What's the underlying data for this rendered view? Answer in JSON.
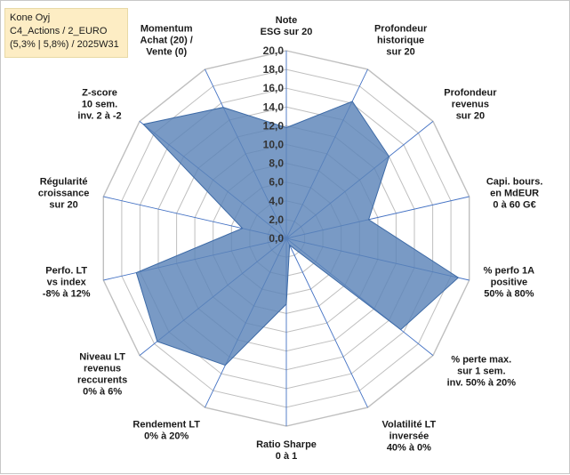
{
  "info": {
    "line1": "Kone Oyj",
    "line2": "C4_Actions / 2_EURO",
    "line3": "(5,3% | 5,8%) / 2025W31"
  },
  "colors": {
    "fill": "#5b84b8",
    "stroke": "#3d6aa6",
    "grid": "#bfbfbf",
    "spoke": "#4472c4"
  },
  "chart_data": {
    "type": "radar",
    "rmin": 0,
    "rmax": 20,
    "ticks": [
      "0,0",
      "2,0",
      "4,0",
      "6,0",
      "8,0",
      "10,0",
      "12,0",
      "14,0",
      "16,0",
      "18,0",
      "20,0"
    ],
    "categories": [
      [
        "Note",
        "ESG sur 20"
      ],
      [
        "Profondeur",
        "historique",
        "sur 20"
      ],
      [
        "Profondeur",
        "revenus",
        "sur 20"
      ],
      [
        "Capi. bours.",
        "en MdEUR",
        "0 à 60 G€"
      ],
      [
        "% perfo 1A",
        "positive",
        "50% à 80%"
      ],
      [
        "% perte max.",
        "sur 1 sem.",
        "inv. 50% à 20%"
      ],
      [
        "Volatilité LT",
        "inversée",
        "40% à 0%"
      ],
      [
        "Ratio Sharpe",
        "0 à 1"
      ],
      [
        "Rendement LT",
        "0% à 20%"
      ],
      [
        "Niveau LT",
        "revenus",
        "reccurents",
        "0% à 6%"
      ],
      [
        "Perfo. LT",
        "vs index",
        "-8% à 12%"
      ],
      [
        "Régularité",
        "croissance",
        "sur 20"
      ],
      [
        "Z-score",
        "10 sem.",
        "inv. 2 à -2"
      ],
      [
        "Momentum",
        "Achat (20) /",
        "Vente (0)"
      ]
    ],
    "values": [
      11.8,
      16.2,
      14.0,
      9.0,
      18.8,
      15.6,
      0.8,
      7.0,
      15.0,
      17.6,
      16.4,
      4.8,
      19.5,
      15.5
    ],
    "grid": true,
    "legend": "none"
  }
}
